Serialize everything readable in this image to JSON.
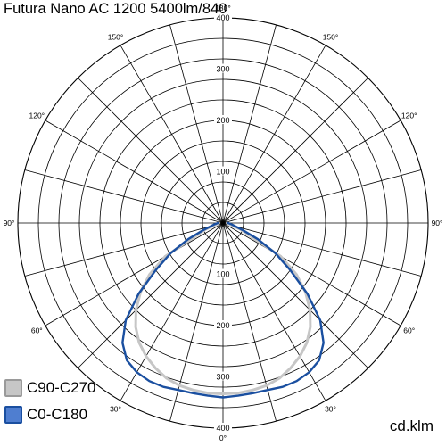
{
  "chart_data": {
    "type": "polar",
    "title": "Futura Nano AC 1200 5400lm/840",
    "unit": "cd.klm",
    "radial_ticks": [
      "100",
      "200",
      "300",
      "400"
    ],
    "radial_max": 400,
    "angle_labels": [
      {
        "text": "0°",
        "deg": 0
      },
      {
        "text": "30°",
        "deg": 30
      },
      {
        "text": "60°",
        "deg": 60
      },
      {
        "text": "90°",
        "deg": 90
      },
      {
        "text": "120°",
        "deg": 120
      },
      {
        "text": "150°",
        "deg": 150
      },
      {
        "text": "180°",
        "deg": 180
      },
      {
        "text": "30°",
        "deg": -30
      },
      {
        "text": "60°",
        "deg": -60
      },
      {
        "text": "90°",
        "deg": -90
      },
      {
        "text": "120°",
        "deg": -120
      },
      {
        "text": "150°",
        "deg": -150
      }
    ],
    "series": [
      {
        "name": "C90-C270",
        "color": "#c6c6c6",
        "points": [
          [
            -90,
            8
          ],
          [
            -80,
            12
          ],
          [
            -70,
            35
          ],
          [
            -60,
            130
          ],
          [
            -55,
            175
          ],
          [
            -50,
            210
          ],
          [
            -45,
            240
          ],
          [
            -40,
            265
          ],
          [
            -35,
            285
          ],
          [
            -30,
            300
          ],
          [
            -25,
            312
          ],
          [
            -20,
            322
          ],
          [
            -15,
            328
          ],
          [
            -10,
            331
          ],
          [
            -5,
            333
          ],
          [
            0,
            333
          ],
          [
            5,
            333
          ],
          [
            10,
            331
          ],
          [
            15,
            328
          ],
          [
            20,
            322
          ],
          [
            25,
            312
          ],
          [
            30,
            300
          ],
          [
            35,
            285
          ],
          [
            40,
            265
          ],
          [
            45,
            240
          ],
          [
            50,
            210
          ],
          [
            55,
            175
          ],
          [
            60,
            130
          ],
          [
            70,
            35
          ],
          [
            80,
            12
          ],
          [
            90,
            8
          ]
        ]
      },
      {
        "name": "C0-C180",
        "color": "#1a4fa0",
        "points": [
          [
            -90,
            10
          ],
          [
            -80,
            18
          ],
          [
            -70,
            42
          ],
          [
            -65,
            75
          ],
          [
            -60,
            118
          ],
          [
            -55,
            160
          ],
          [
            -50,
            215
          ],
          [
            -45,
            268
          ],
          [
            -40,
            305
          ],
          [
            -35,
            327
          ],
          [
            -30,
            336
          ],
          [
            -25,
            340
          ],
          [
            -20,
            340
          ],
          [
            -15,
            337
          ],
          [
            -10,
            337
          ],
          [
            -5,
            338
          ],
          [
            0,
            340
          ],
          [
            5,
            338
          ],
          [
            10,
            337
          ],
          [
            15,
            337
          ],
          [
            20,
            340
          ],
          [
            25,
            340
          ],
          [
            30,
            336
          ],
          [
            35,
            327
          ],
          [
            40,
            305
          ],
          [
            45,
            268
          ],
          [
            50,
            215
          ],
          [
            55,
            160
          ],
          [
            60,
            118
          ],
          [
            65,
            75
          ],
          [
            70,
            42
          ],
          [
            80,
            18
          ],
          [
            90,
            10
          ]
        ]
      }
    ]
  }
}
